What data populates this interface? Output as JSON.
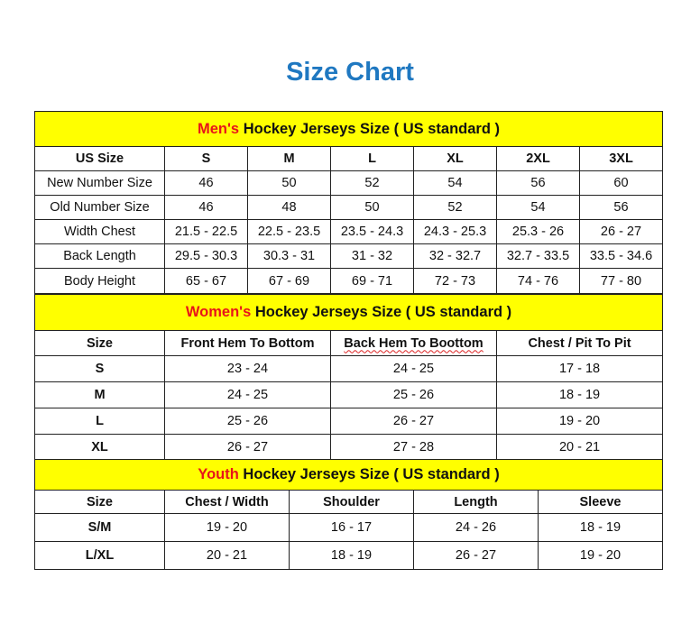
{
  "title": "Size Chart",
  "colors": {
    "title": "#1f78c1",
    "banner_bg": "#ffff00",
    "accent": "#e8141a"
  },
  "mens": {
    "banner_accent": "Men's",
    "banner_rest": " Hockey Jerseys Size ( US standard )",
    "header": [
      "US Size",
      "S",
      "M",
      "L",
      "XL",
      "2XL",
      "3XL"
    ],
    "rows": [
      [
        "New Number Size",
        "46",
        "50",
        "52",
        "54",
        "56",
        "60"
      ],
      [
        "Old Number Size",
        "46",
        "48",
        "50",
        "52",
        "54",
        "56"
      ],
      [
        "Width Chest",
        "21.5 - 22.5",
        "22.5 - 23.5",
        "23.5 - 24.3",
        "24.3 - 25.3",
        "25.3 - 26",
        "26 - 27"
      ],
      [
        "Back Length",
        "29.5 - 30.3",
        "30.3 - 31",
        "31 - 32",
        "32 - 32.7",
        "32.7 - 33.5",
        "33.5 - 34.6"
      ],
      [
        "Body Height",
        "65 - 67",
        "67 - 69",
        "69 - 71",
        "72 - 73",
        "74 - 76",
        "77 - 80"
      ]
    ]
  },
  "womens": {
    "banner_accent": "Women's",
    "banner_rest": " Hockey Jerseys Size ( US standard )",
    "header": [
      "Size",
      "Front Hem To Bottom",
      "Back Hem To Boottom",
      "Chest / Pit To Pit"
    ],
    "rows": [
      [
        "S",
        "23 - 24",
        "24 - 25",
        "17 - 18"
      ],
      [
        "M",
        "24 - 25",
        "25 - 26",
        "18 - 19"
      ],
      [
        "L",
        "25 - 26",
        "26 - 27",
        "19 - 20"
      ],
      [
        "XL",
        "26 - 27",
        "27 - 28",
        "20 - 21"
      ]
    ]
  },
  "youth": {
    "banner_accent": "Youth",
    "banner_rest": " Hockey Jerseys Size ( US standard )",
    "header": [
      "Size",
      "Chest / Width",
      "Shoulder",
      "Length",
      "Sleeve"
    ],
    "rows": [
      [
        "S/M",
        "19 - 20",
        "16 - 17",
        "24 - 26",
        "18 - 19"
      ],
      [
        "L/XL",
        "20 - 21",
        "18 - 19",
        "26 - 27",
        "19 - 20"
      ]
    ]
  }
}
